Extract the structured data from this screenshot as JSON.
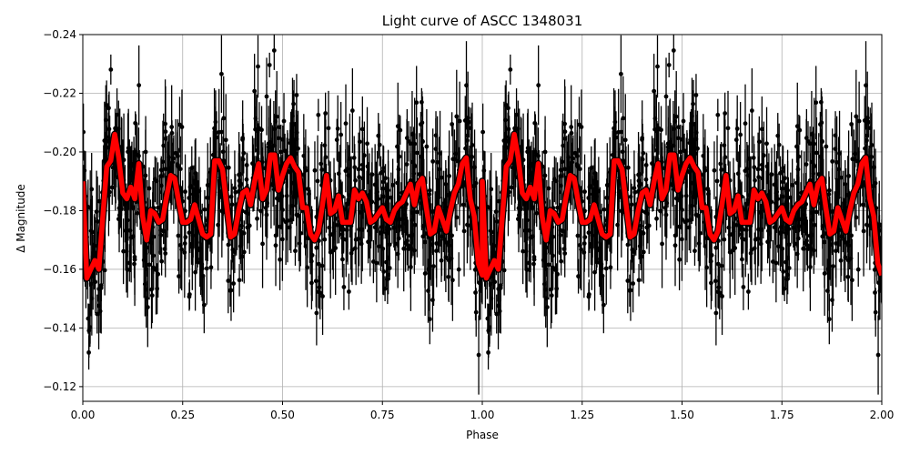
{
  "chart_data": {
    "type": "scatter",
    "title": "Light curve of ASCC 1348031",
    "xlabel": "Phase",
    "ylabel": "Δ Magnitude",
    "xlim": [
      0.0,
      2.0
    ],
    "ylim": [
      -0.115,
      -0.24
    ],
    "y_inverted": true,
    "grid": true,
    "legend": null,
    "x_ticks": [
      0.0,
      0.25,
      0.5,
      0.75,
      1.0,
      1.25,
      1.5,
      1.75,
      2.0
    ],
    "x_tick_labels": [
      "0.00",
      "0.25",
      "0.50",
      "0.75",
      "1.00",
      "1.25",
      "1.50",
      "1.75",
      "2.00"
    ],
    "y_ticks": [
      -0.24,
      -0.22,
      -0.2,
      -0.18,
      -0.16,
      -0.14,
      -0.12
    ],
    "y_tick_labels": [
      "−0.24",
      "−0.22",
      "−0.20",
      "−0.18",
      "−0.16",
      "−0.14",
      "−0.12"
    ],
    "series": [
      {
        "name": "observations",
        "kind": "errorbar-scatter",
        "color": "#000000",
        "description": "Dense black points with vertical error bars, scattered between about -0.115 and -0.24 across phase 0-2 (data repeated for phase 1-2)",
        "typical_range": [
          -0.12,
          -0.24
        ]
      },
      {
        "name": "binned model",
        "kind": "line",
        "color": "#ff0000",
        "edge_color": "#000000",
        "x": [
          0.0,
          0.01,
          0.02,
          0.03,
          0.04,
          0.05,
          0.06,
          0.07,
          0.08,
          0.09,
          0.1,
          0.11,
          0.12,
          0.13,
          0.14,
          0.15,
          0.16,
          0.17,
          0.18,
          0.19,
          0.2,
          0.21,
          0.22,
          0.23,
          0.24,
          0.25,
          0.26,
          0.27,
          0.28,
          0.29,
          0.3,
          0.31,
          0.32,
          0.33,
          0.34,
          0.35,
          0.36,
          0.37,
          0.38,
          0.39,
          0.4,
          0.41,
          0.42,
          0.43,
          0.44,
          0.45,
          0.46,
          0.47,
          0.48,
          0.49,
          0.5,
          0.51,
          0.52,
          0.53,
          0.54,
          0.55,
          0.56,
          0.57,
          0.58,
          0.59,
          0.6,
          0.61,
          0.62,
          0.63,
          0.64,
          0.65,
          0.66,
          0.67,
          0.68,
          0.69,
          0.7,
          0.71,
          0.72,
          0.73,
          0.74,
          0.75,
          0.76,
          0.77,
          0.78,
          0.79,
          0.8,
          0.81,
          0.82,
          0.83,
          0.84,
          0.85,
          0.86,
          0.87,
          0.88,
          0.89,
          0.9,
          0.91,
          0.92,
          0.93,
          0.94,
          0.95,
          0.96,
          0.97,
          0.98,
          0.99,
          1.0
        ],
        "y": [
          -0.19,
          -0.157,
          -0.16,
          -0.163,
          -0.16,
          -0.178,
          -0.195,
          -0.197,
          -0.206,
          -0.198,
          -0.186,
          -0.184,
          -0.188,
          -0.184,
          -0.196,
          -0.178,
          -0.17,
          -0.18,
          -0.179,
          -0.176,
          -0.177,
          -0.185,
          -0.192,
          -0.191,
          -0.183,
          -0.176,
          -0.176,
          -0.177,
          -0.182,
          -0.177,
          -0.172,
          -0.171,
          -0.172,
          -0.197,
          -0.197,
          -0.194,
          -0.182,
          -0.171,
          -0.172,
          -0.18,
          -0.186,
          -0.187,
          -0.182,
          -0.19,
          -0.196,
          -0.184,
          -0.187,
          -0.199,
          -0.199,
          -0.187,
          -0.192,
          -0.196,
          -0.198,
          -0.195,
          -0.193,
          -0.181,
          -0.181,
          -0.172,
          -0.17,
          -0.173,
          -0.182,
          -0.192,
          -0.179,
          -0.18,
          -0.185,
          -0.176,
          -0.176,
          -0.176,
          -0.187,
          -0.184,
          -0.186,
          -0.183,
          -0.176,
          -0.177,
          -0.179,
          -0.181,
          -0.177,
          -0.176,
          -0.18,
          -0.182,
          -0.183,
          -0.186,
          -0.189,
          -0.182,
          -0.189,
          -0.191,
          -0.181,
          -0.172,
          -0.173,
          -0.181,
          -0.177,
          -0.173,
          -0.18,
          -0.186,
          -0.189,
          -0.196,
          -0.198,
          -0.184,
          -0.178,
          -0.162,
          -0.158
        ],
        "repeat_period": 1.0
      }
    ]
  }
}
